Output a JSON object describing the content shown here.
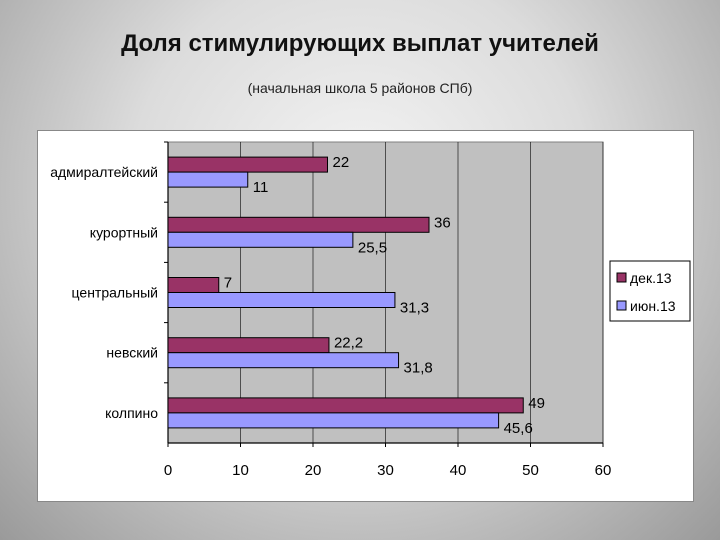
{
  "header": {
    "title": "Доля стимулирующих выплат учителей",
    "subtitle": "(начальная школа 5 районов СПб)"
  },
  "colors": {
    "series_1": "#993366",
    "series_2": "#9999ff",
    "plot_area": "#c0c0c0",
    "panel": "#ffffff"
  },
  "chart_data": {
    "type": "bar",
    "orientation": "horizontal",
    "categories": [
      "адмиралтейский",
      "курортный",
      "центральный",
      "невский",
      "колпино"
    ],
    "series": [
      {
        "name": "дек.13",
        "values": [
          22,
          36,
          7,
          22.2,
          49
        ],
        "labels": [
          "22",
          "36",
          "7",
          "22,2",
          "49"
        ]
      },
      {
        "name": "июн.13",
        "values": [
          11,
          25.5,
          31.3,
          31.8,
          45.6
        ],
        "labels": [
          "11",
          "25,5",
          "31,3",
          "31,8",
          "45,6"
        ]
      }
    ],
    "xlim": [
      0,
      60
    ],
    "xticks": [
      "0",
      "10",
      "20",
      "30",
      "40",
      "50",
      "60"
    ],
    "grid": true,
    "legend": "right"
  }
}
